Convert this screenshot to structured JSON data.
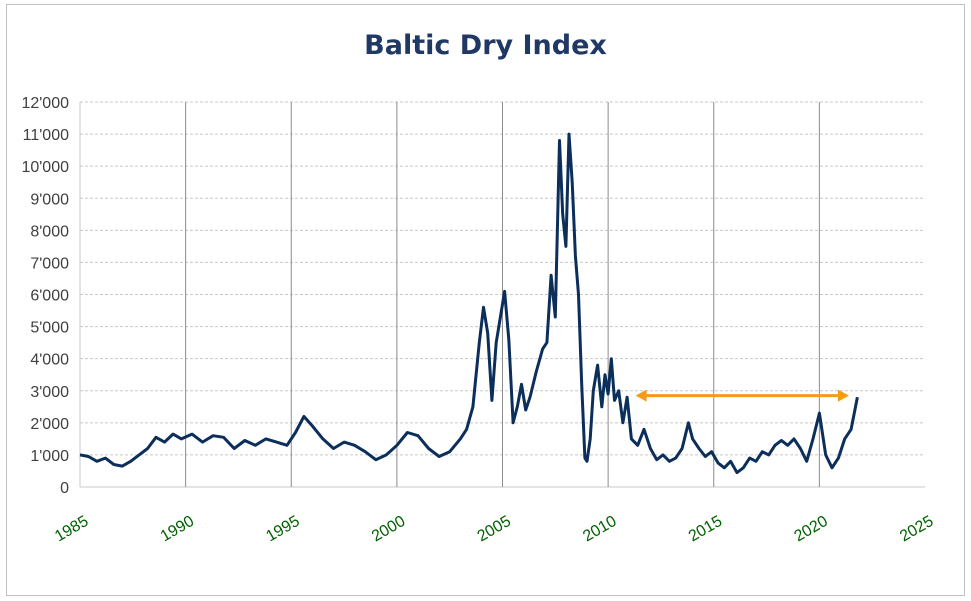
{
  "chart_data": {
    "type": "line",
    "title": "Baltic Dry Index",
    "xlabel": "",
    "ylabel": "",
    "xlim": [
      1985,
      2025
    ],
    "ylim": [
      0,
      12000
    ],
    "y_ticks": [
      0,
      1000,
      2000,
      3000,
      4000,
      5000,
      6000,
      7000,
      8000,
      9000,
      10000,
      11000,
      12000
    ],
    "y_tick_labels": [
      "0",
      "1'000",
      "2'000",
      "3'000",
      "4'000",
      "5'000",
      "6'000",
      "7'000",
      "8'000",
      "9'000",
      "10'000",
      "11'000",
      "12'000"
    ],
    "x_ticks": [
      1985,
      1990,
      1995,
      2000,
      2005,
      2010,
      2015,
      2020,
      2025
    ],
    "x_tick_labels": [
      "1985",
      "1990",
      "1995",
      "2000",
      "2005",
      "2010",
      "2015",
      "2020",
      "2025"
    ],
    "grid": {
      "horizontal": true,
      "vertical": true
    },
    "legend": "none",
    "colors": {
      "line": "#0b2e5a",
      "arrow": "#f59a1b",
      "title": "#1f3864",
      "x_ticks": "#006100"
    },
    "series": [
      {
        "x": [
          1985.0,
          1985.4,
          1985.8,
          1986.2,
          1986.6,
          1987.0,
          1987.4,
          1987.8,
          1988.2,
          1988.6,
          1989.0,
          1989.4,
          1989.8,
          1990.3,
          1990.8,
          1991.3,
          1991.8,
          1992.3,
          1992.8,
          1993.3,
          1993.8,
          1994.3,
          1994.8,
          1995.2,
          1995.6,
          1996.0,
          1996.5,
          1997.0,
          1997.5,
          1998.0,
          1998.5,
          1999.0,
          1999.5,
          2000.0,
          2000.5,
          2001.0,
          2001.5,
          2002.0,
          2002.5,
          2003.0,
          2003.3,
          2003.6,
          2003.9,
          2004.1,
          2004.3,
          2004.5,
          2004.7,
          2004.9,
          2005.1,
          2005.3,
          2005.5,
          2005.7,
          2005.9,
          2006.1,
          2006.3,
          2006.6,
          2006.9,
          2007.1,
          2007.3,
          2007.5,
          2007.7,
          2007.85,
          2008.0,
          2008.15,
          2008.3,
          2008.45,
          2008.6,
          2008.75,
          2008.9,
          2009.0,
          2009.15,
          2009.3,
          2009.5,
          2009.7,
          2009.85,
          2010.0,
          2010.15,
          2010.3,
          2010.5,
          2010.7,
          2010.9,
          2011.1,
          2011.4,
          2011.7,
          2012.0,
          2012.3,
          2012.6,
          2012.9,
          2013.2,
          2013.5,
          2013.8,
          2014.0,
          2014.3,
          2014.6,
          2014.9,
          2015.2,
          2015.5,
          2015.8,
          2016.1,
          2016.4,
          2016.7,
          2017.0,
          2017.3,
          2017.6,
          2017.9,
          2018.2,
          2018.5,
          2018.8,
          2019.1,
          2019.4,
          2019.7,
          2020.0,
          2020.3,
          2020.6,
          2020.9,
          2021.2,
          2021.5,
          2021.8
        ],
        "values": [
          1000,
          950,
          800,
          900,
          700,
          650,
          800,
          1000,
          1200,
          1550,
          1400,
          1650,
          1500,
          1650,
          1400,
          1600,
          1550,
          1200,
          1450,
          1300,
          1500,
          1400,
          1300,
          1700,
          2200,
          1900,
          1500,
          1200,
          1400,
          1300,
          1100,
          850,
          1000,
          1300,
          1700,
          1600,
          1200,
          950,
          1100,
          1500,
          1800,
          2500,
          4500,
          5600,
          4800,
          2700,
          4500,
          5300,
          6100,
          4600,
          2000,
          2500,
          3200,
          2400,
          2800,
          3600,
          4300,
          4500,
          6600,
          5300,
          10800,
          8500,
          7500,
          11000,
          9500,
          7200,
          6000,
          3200,
          900,
          800,
          1500,
          3000,
          3800,
          2500,
          3500,
          2900,
          4000,
          2700,
          3000,
          2000,
          2800,
          1500,
          1300,
          1800,
          1200,
          850,
          1000,
          800,
          900,
          1200,
          2000,
          1500,
          1200,
          950,
          1100,
          750,
          600,
          800,
          450,
          600,
          900,
          800,
          1100,
          1000,
          1300,
          1450,
          1300,
          1500,
          1200,
          800,
          1500,
          2300,
          1000,
          600,
          900,
          1500,
          1800,
          2800
        ]
      }
    ],
    "annotations": [
      {
        "type": "double-arrow",
        "x_start": 2011.3,
        "x_end": 2021.4,
        "y": 2850
      }
    ]
  }
}
